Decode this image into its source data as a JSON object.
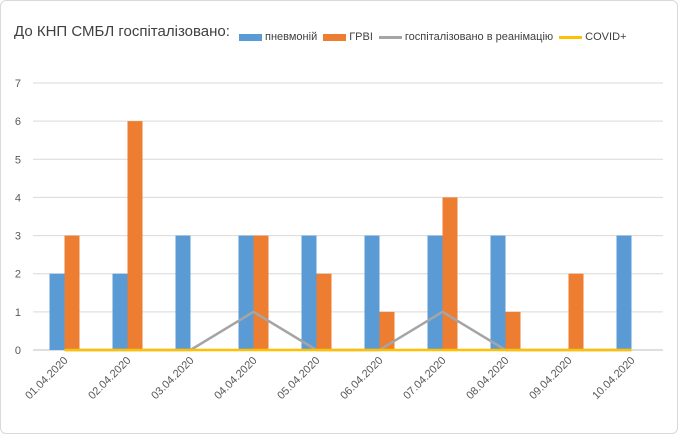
{
  "chart_data": {
    "type": "bar",
    "title": "До КНП СМБЛ госпіталізовано:",
    "categories": [
      "01.04.2020",
      "02.04.2020",
      "03.04.2020",
      "04.04.2020",
      "05.04.2020",
      "06.04.2020",
      "07.04.2020",
      "08.04.2020",
      "09.04.2020",
      "10.04.2020"
    ],
    "ylim": [
      0,
      7
    ],
    "yticks": [
      "0",
      "1",
      "2",
      "3",
      "4",
      "5",
      "6",
      "7"
    ],
    "grid": true,
    "legend_position": "top",
    "series": [
      {
        "name": "пневмоній",
        "type": "bar",
        "color": "#5b9bd5",
        "values": [
          2,
          2,
          3,
          3,
          3,
          3,
          3,
          3,
          0,
          3
        ]
      },
      {
        "name": "ГРВІ",
        "type": "bar",
        "color": "#ed7d31",
        "values": [
          3,
          6,
          0,
          3,
          2,
          1,
          4,
          1,
          2,
          0
        ]
      },
      {
        "name": "госпіталізовано в реанімацію",
        "type": "line",
        "color": "#a5a5a5",
        "values": [
          0,
          0,
          0,
          1,
          0,
          0,
          1,
          0,
          0,
          0
        ]
      },
      {
        "name": "COVID+",
        "type": "line",
        "color": "#ffc000",
        "values": [
          0,
          0,
          0,
          0,
          0,
          0,
          0,
          0,
          0,
          0
        ]
      }
    ]
  }
}
